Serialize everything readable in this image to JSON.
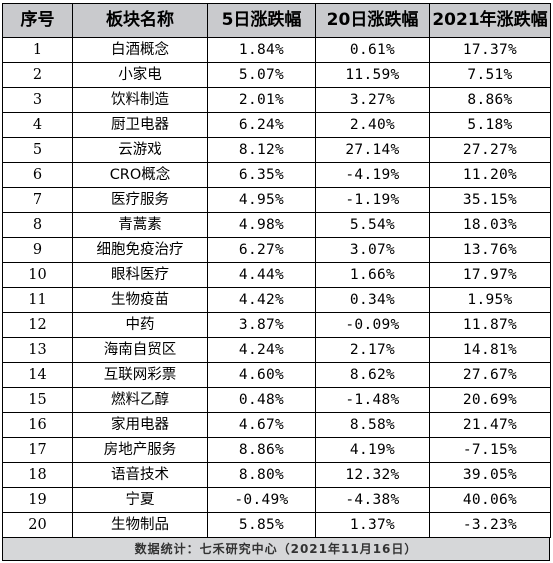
{
  "table": {
    "headers": [
      "序号",
      "板块名称",
      "5日涨跌幅",
      "20日涨跌幅",
      "2021年涨跌幅"
    ],
    "rows": [
      [
        "1",
        "白酒概念",
        "1.84%",
        "0.61%",
        "17.37%"
      ],
      [
        "2",
        "小家电",
        "5.07%",
        "11.59%",
        "7.51%"
      ],
      [
        "3",
        "饮料制造",
        "2.01%",
        "3.27%",
        "8.86%"
      ],
      [
        "4",
        "厨卫电器",
        "6.24%",
        "2.40%",
        "5.18%"
      ],
      [
        "5",
        "云游戏",
        "8.12%",
        "27.14%",
        "27.27%"
      ],
      [
        "6",
        "CRO概念",
        "6.35%",
        "-4.19%",
        "11.20%"
      ],
      [
        "7",
        "医疗服务",
        "4.95%",
        "-1.19%",
        "35.15%"
      ],
      [
        "8",
        "青蒿素",
        "4.98%",
        "5.54%",
        "18.03%"
      ],
      [
        "9",
        "细胞免疫治疗",
        "6.27%",
        "3.07%",
        "13.76%"
      ],
      [
        "10",
        "眼科医疗",
        "4.44%",
        "1.66%",
        "17.97%"
      ],
      [
        "11",
        "生物疫苗",
        "4.42%",
        "0.34%",
        "1.95%"
      ],
      [
        "12",
        "中药",
        "3.87%",
        "-0.09%",
        "11.87%"
      ],
      [
        "13",
        "海南自贸区",
        "4.24%",
        "2.17%",
        "14.81%"
      ],
      [
        "14",
        "互联网彩票",
        "4.60%",
        "8.62%",
        "27.67%"
      ],
      [
        "15",
        "燃料乙醇",
        "0.48%",
        "-1.48%",
        "20.69%"
      ],
      [
        "16",
        "家用电器",
        "4.67%",
        "8.58%",
        "21.47%"
      ],
      [
        "17",
        "房地产服务",
        "8.86%",
        "4.19%",
        "-7.15%"
      ],
      [
        "18",
        "语音技术",
        "8.80%",
        "12.32%",
        "39.05%"
      ],
      [
        "19",
        "宁夏",
        "-0.49%",
        "-4.38%",
        "40.06%"
      ],
      [
        "20",
        "生物制品",
        "5.85%",
        "1.37%",
        "-3.23%"
      ]
    ]
  },
  "footer": {
    "text": "数据统计：七禾研究中心（2021年11月16日）"
  }
}
